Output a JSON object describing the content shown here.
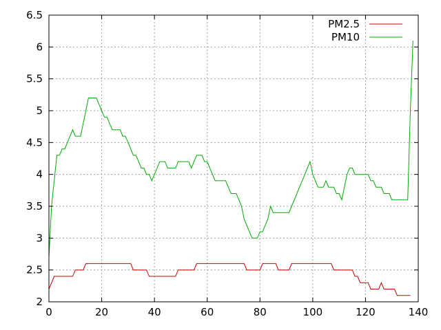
{
  "chart_data": {
    "type": "line",
    "title": "",
    "xlabel": "",
    "ylabel": "",
    "xlim": [
      0,
      140
    ],
    "ylim": [
      2,
      6.5
    ],
    "xticks": [
      0,
      20,
      40,
      60,
      80,
      100,
      120,
      140
    ],
    "yticks": [
      2,
      2.5,
      3,
      3.5,
      4,
      4.5,
      5,
      5.5,
      6,
      6.5
    ],
    "xtick_labels": [
      "0",
      "20",
      "40",
      "60",
      "80",
      "100",
      "120",
      "140"
    ],
    "ytick_labels": [
      "2",
      "2.5",
      "3",
      "3.5",
      "4",
      "4.5",
      "5",
      "5.5",
      "6",
      "6.5"
    ],
    "grid": true,
    "legend_position": "top-right",
    "series": [
      {
        "name": "PM2.5",
        "color": "#cc0000",
        "points": [
          [
            0,
            2.2
          ],
          [
            2,
            2.4
          ],
          [
            9,
            2.4
          ],
          [
            10,
            2.5
          ],
          [
            13,
            2.5
          ],
          [
            14,
            2.6
          ],
          [
            31,
            2.6
          ],
          [
            32,
            2.5
          ],
          [
            37,
            2.5
          ],
          [
            38,
            2.4
          ],
          [
            48,
            2.4
          ],
          [
            49,
            2.5
          ],
          [
            55,
            2.5
          ],
          [
            56,
            2.6
          ],
          [
            74,
            2.6
          ],
          [
            75,
            2.5
          ],
          [
            80,
            2.5
          ],
          [
            81,
            2.6
          ],
          [
            86,
            2.6
          ],
          [
            87,
            2.5
          ],
          [
            91,
            2.5
          ],
          [
            92,
            2.6
          ],
          [
            107,
            2.6
          ],
          [
            108,
            2.5
          ],
          [
            115,
            2.5
          ],
          [
            116,
            2.4
          ],
          [
            117,
            2.4
          ],
          [
            118,
            2.3
          ],
          [
            121,
            2.3
          ],
          [
            122,
            2.2
          ],
          [
            125,
            2.2
          ],
          [
            126,
            2.3
          ],
          [
            127,
            2.2
          ],
          [
            131,
            2.2
          ],
          [
            132,
            2.1
          ],
          [
            137,
            2.1
          ]
        ]
      },
      {
        "name": "PM10",
        "color": "#00aa00",
        "points": [
          [
            0,
            2.7
          ],
          [
            1,
            3.5
          ],
          [
            3,
            4.3
          ],
          [
            4,
            4.3
          ],
          [
            5,
            4.4
          ],
          [
            6,
            4.4
          ],
          [
            7,
            4.5
          ],
          [
            8,
            4.6
          ],
          [
            9,
            4.7
          ],
          [
            10,
            4.6
          ],
          [
            12,
            4.6
          ],
          [
            13,
            4.8
          ],
          [
            14,
            5.0
          ],
          [
            15,
            5.2
          ],
          [
            18,
            5.2
          ],
          [
            19,
            5.1
          ],
          [
            20,
            5.0
          ],
          [
            21,
            4.9
          ],
          [
            22,
            4.9
          ],
          [
            24,
            4.7
          ],
          [
            27,
            4.7
          ],
          [
            28,
            4.6
          ],
          [
            29,
            4.6
          ],
          [
            30,
            4.5
          ],
          [
            31,
            4.4
          ],
          [
            32,
            4.3
          ],
          [
            33,
            4.3
          ],
          [
            34,
            4.2
          ],
          [
            35,
            4.1
          ],
          [
            36,
            4.1
          ],
          [
            37,
            4.0
          ],
          [
            38,
            4.0
          ],
          [
            39,
            3.9
          ],
          [
            40,
            4.0
          ],
          [
            41,
            4.1
          ],
          [
            42,
            4.2
          ],
          [
            44,
            4.2
          ],
          [
            45,
            4.1
          ],
          [
            48,
            4.1
          ],
          [
            49,
            4.2
          ],
          [
            53,
            4.2
          ],
          [
            54,
            4.1
          ],
          [
            55,
            4.2
          ],
          [
            56,
            4.3
          ],
          [
            58,
            4.3
          ],
          [
            59,
            4.2
          ],
          [
            60,
            4.2
          ],
          [
            61,
            4.1
          ],
          [
            62,
            4.0
          ],
          [
            63,
            3.9
          ],
          [
            67,
            3.9
          ],
          [
            68,
            3.8
          ],
          [
            69,
            3.7
          ],
          [
            71,
            3.7
          ],
          [
            72,
            3.6
          ],
          [
            73,
            3.5
          ],
          [
            74,
            3.3
          ],
          [
            75,
            3.2
          ],
          [
            76,
            3.1
          ],
          [
            77,
            3.0
          ],
          [
            79,
            3.0
          ],
          [
            80,
            3.1
          ],
          [
            81,
            3.1
          ],
          [
            82,
            3.2
          ],
          [
            83,
            3.3
          ],
          [
            84,
            3.5
          ],
          [
            85,
            3.4
          ],
          [
            91,
            3.4
          ],
          [
            92,
            3.5
          ],
          [
            93,
            3.6
          ],
          [
            95,
            3.8
          ],
          [
            97,
            4.0
          ],
          [
            99,
            4.2
          ],
          [
            100,
            4.0
          ],
          [
            101,
            3.9
          ],
          [
            102,
            3.8
          ],
          [
            104,
            3.8
          ],
          [
            105,
            3.9
          ],
          [
            106,
            3.8
          ],
          [
            108,
            3.8
          ],
          [
            109,
            3.7
          ],
          [
            110,
            3.7
          ],
          [
            111,
            3.6
          ],
          [
            113,
            4.0
          ],
          [
            114,
            4.1
          ],
          [
            115,
            4.1
          ],
          [
            116,
            4.0
          ],
          [
            121,
            4.0
          ],
          [
            122,
            3.9
          ],
          [
            123,
            3.9
          ],
          [
            124,
            3.8
          ],
          [
            126,
            3.8
          ],
          [
            127,
            3.7
          ],
          [
            129,
            3.7
          ],
          [
            130,
            3.6
          ],
          [
            136,
            3.6
          ],
          [
            137,
            5.0
          ],
          [
            138,
            6.1
          ]
        ]
      }
    ]
  }
}
